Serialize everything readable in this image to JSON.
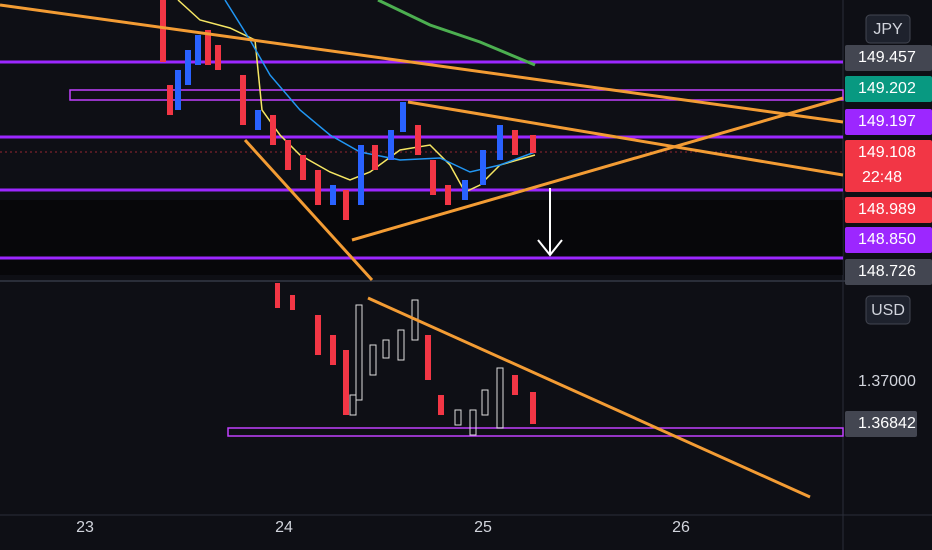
{
  "top_pane": {
    "currency": "JPY",
    "price_labels": [
      "149.457",
      "149.202",
      "149.197",
      "149.108",
      "148.989",
      "148.850",
      "148.726"
    ],
    "countdown": "22:48"
  },
  "bottom_pane": {
    "currency": "USD",
    "price_labels": [
      "1.37000",
      "1.36842"
    ]
  },
  "time_axis": [
    "23",
    "24",
    "25",
    "26"
  ]
}
